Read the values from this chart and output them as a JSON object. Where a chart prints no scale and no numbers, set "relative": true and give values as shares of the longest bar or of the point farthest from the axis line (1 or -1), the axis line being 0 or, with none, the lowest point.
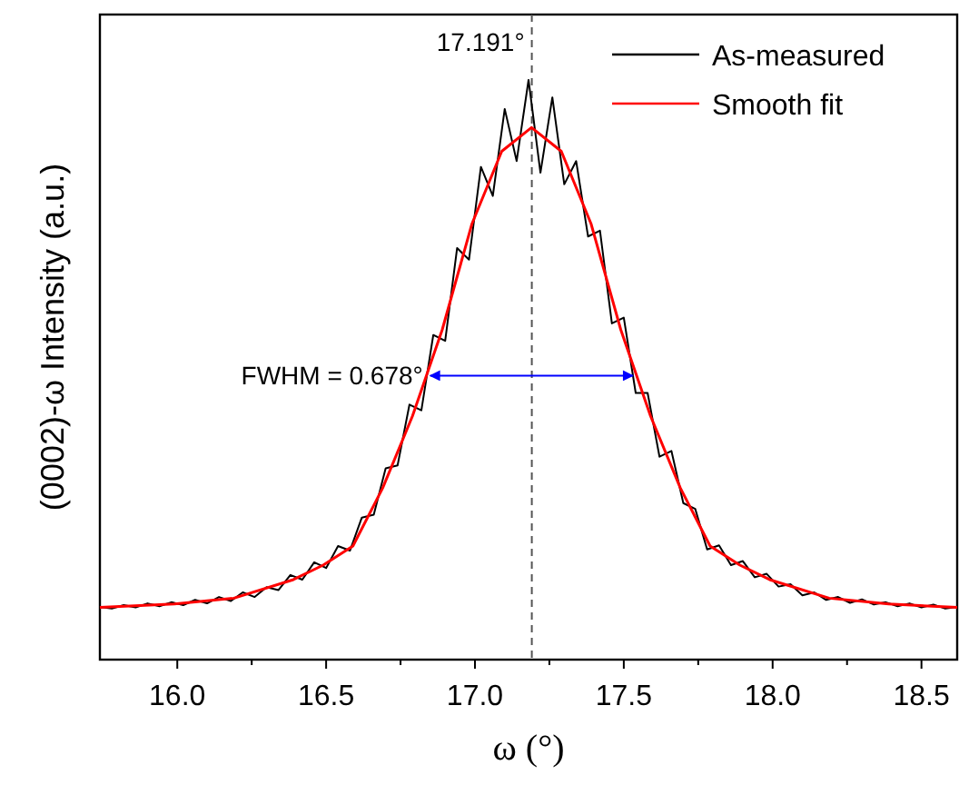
{
  "chart_data": {
    "type": "line",
    "relative": true,
    "xlabel": "ω (°)",
    "ylabel": "(0002)-ω Intensity (a.u.)",
    "xlim": [
      15.74,
      18.62
    ],
    "xticks": [
      {
        "value": 16,
        "label": "16.0"
      },
      {
        "value": 16.5,
        "label": "16.5"
      },
      {
        "value": 17,
        "label": "17.0"
      },
      {
        "value": 17.5,
        "label": "17.5"
      },
      {
        "value": 18,
        "label": "18.0"
      },
      {
        "value": 18.5,
        "label": "18.5"
      }
    ],
    "legend": "top right",
    "grid": false,
    "line_style": "solid",
    "marker": "none",
    "series": [
      {
        "name": "As-measured",
        "color": "#000000",
        "x": [
          15.74,
          15.78,
          15.82,
          15.86,
          15.9,
          15.94,
          15.98,
          16.02,
          16.06,
          16.1,
          16.14,
          16.18,
          16.22,
          16.26,
          16.3,
          16.34,
          16.38,
          16.42,
          16.46,
          16.5,
          16.54,
          16.58,
          16.62,
          16.66,
          16.7,
          16.74,
          16.78,
          16.82,
          16.86,
          16.9,
          16.94,
          16.98,
          17.02,
          17.06,
          17.1,
          17.14,
          17.18,
          17.22,
          17.26,
          17.3,
          17.34,
          17.38,
          17.42,
          17.46,
          17.5,
          17.54,
          17.58,
          17.62,
          17.66,
          17.7,
          17.74,
          17.78,
          17.82,
          17.86,
          17.9,
          17.94,
          17.98,
          18.02,
          18.06,
          18.1,
          18.14,
          18.18,
          18.22,
          18.26,
          18.3,
          18.34,
          18.38,
          18.42,
          18.46,
          18.5,
          18.54,
          18.58,
          18.62
        ],
        "values": [
          0.091,
          0.088,
          0.094,
          0.09,
          0.097,
          0.092,
          0.099,
          0.094,
          0.103,
          0.097,
          0.108,
          0.101,
          0.116,
          0.108,
          0.125,
          0.12,
          0.146,
          0.138,
          0.168,
          0.158,
          0.196,
          0.188,
          0.245,
          0.25,
          0.33,
          0.335,
          0.44,
          0.43,
          0.56,
          0.55,
          0.71,
          0.69,
          0.85,
          0.8,
          0.95,
          0.86,
          1.0,
          0.84,
          0.97,
          0.82,
          0.86,
          0.73,
          0.74,
          0.58,
          0.59,
          0.46,
          0.46,
          0.35,
          0.36,
          0.27,
          0.26,
          0.19,
          0.197,
          0.163,
          0.17,
          0.142,
          0.148,
          0.126,
          0.13,
          0.111,
          0.116,
          0.103,
          0.108,
          0.098,
          0.104,
          0.095,
          0.099,
          0.092,
          0.097,
          0.09,
          0.095,
          0.088,
          0.091
        ]
      },
      {
        "name": "Smooth fit",
        "color": "#ff0000",
        "x": [
          15.74,
          15.99,
          16.19,
          16.39,
          16.49,
          16.59,
          16.69,
          16.79,
          16.89,
          16.99,
          17.09,
          17.19,
          17.29,
          17.39,
          17.49,
          17.59,
          17.69,
          17.79,
          17.89,
          17.99,
          18.19,
          18.39,
          18.62
        ],
        "values": [
          0.09,
          0.096,
          0.106,
          0.138,
          0.163,
          0.196,
          0.296,
          0.42,
          0.569,
          0.752,
          0.877,
          0.918,
          0.877,
          0.752,
          0.569,
          0.42,
          0.296,
          0.196,
          0.163,
          0.138,
          0.106,
          0.096,
          0.09
        ]
      },
      {
        "color": "#0000ff",
        "x": [
          16.85,
          17.53
        ],
        "values": [
          0.49,
          0.49
        ]
      }
    ],
    "ref_lines": [
      {
        "axis": "x",
        "value": 17.191,
        "label": "17.191°",
        "color": "#555555",
        "line_style": "dashed"
      }
    ],
    "annotations": [
      {
        "text": "FWHM = 0.678°",
        "x": 16.85,
        "y": 0.49
      }
    ]
  }
}
